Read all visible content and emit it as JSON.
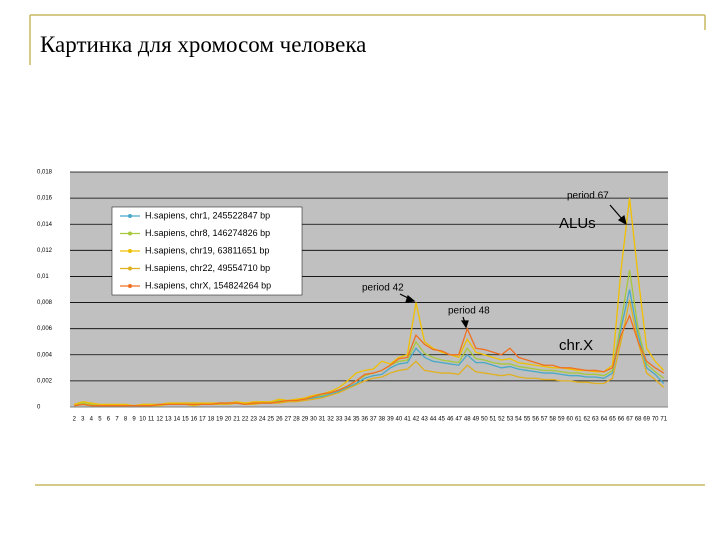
{
  "title": "Картинка для хромосом человека",
  "chart_data": {
    "type": "line",
    "categories": [
      2,
      3,
      4,
      5,
      6,
      7,
      8,
      9,
      10,
      11,
      12,
      13,
      14,
      15,
      16,
      17,
      18,
      19,
      20,
      21,
      22,
      23,
      24,
      25,
      26,
      27,
      28,
      29,
      30,
      31,
      32,
      33,
      34,
      35,
      36,
      37,
      38,
      39,
      40,
      41,
      42,
      43,
      44,
      45,
      46,
      47,
      48,
      49,
      50,
      51,
      52,
      53,
      54,
      55,
      56,
      57,
      58,
      59,
      60,
      61,
      62,
      63,
      64,
      65,
      66,
      67,
      68,
      69,
      70,
      71
    ],
    "ylim": [
      0,
      0.018
    ],
    "yticks": [
      0,
      {
        "value": 0.002,
        "label": "0,002"
      },
      {
        "value": 0.004,
        "label": "0,004"
      },
      {
        "value": 0.006,
        "label": "0,006"
      },
      {
        "value": 0.008,
        "label": "0,008"
      },
      {
        "value": 0.01,
        "label": "0,01"
      },
      {
        "value": 0.012,
        "label": "0,012"
      },
      {
        "value": 0.014,
        "label": "0,014"
      },
      {
        "value": 0.016,
        "label": "0,016"
      },
      {
        "value": 0.018,
        "label": "0,018"
      }
    ],
    "grid": true,
    "legend": "upper-left",
    "series": [
      {
        "name": "H.sapiens, chr1, 245522847 bp",
        "color": "#4aa8c8",
        "values": [
          0.0001,
          0.0002,
          0.0001,
          0.0001,
          0.0001,
          0.0001,
          0.0001,
          0.0001,
          0.0001,
          0.0001,
          0.0002,
          0.0002,
          0.0002,
          0.0002,
          0.0002,
          0.0002,
          0.0002,
          0.0002,
          0.0003,
          0.0003,
          0.0002,
          0.0003,
          0.0003,
          0.0003,
          0.0004,
          0.0004,
          0.0005,
          0.0005,
          0.0007,
          0.0008,
          0.001,
          0.0012,
          0.0015,
          0.0018,
          0.0022,
          0.0024,
          0.0025,
          0.003,
          0.0033,
          0.0034,
          0.0045,
          0.0038,
          0.0035,
          0.0034,
          0.0033,
          0.0032,
          0.004,
          0.0034,
          0.0034,
          0.0032,
          0.003,
          0.0031,
          0.0029,
          0.0028,
          0.0027,
          0.0026,
          0.0026,
          0.0025,
          0.0024,
          0.0024,
          0.0023,
          0.0023,
          0.0022,
          0.0026,
          0.006,
          0.009,
          0.0055,
          0.003,
          0.0025,
          0.0018
        ]
      },
      {
        "name": "H.sapiens, chr8, 146274826 bp",
        "color": "#a8c83c",
        "values": [
          0.0002,
          0.0003,
          0.0002,
          0.0001,
          0.0001,
          0.0002,
          0.0001,
          0.0001,
          0.0002,
          0.0002,
          0.0002,
          0.0002,
          0.0003,
          0.0002,
          0.0002,
          0.0003,
          0.0002,
          0.0003,
          0.0003,
          0.0003,
          0.0003,
          0.0003,
          0.0004,
          0.0003,
          0.0005,
          0.0004,
          0.0005,
          0.0006,
          0.0008,
          0.0009,
          0.0011,
          0.0013,
          0.0016,
          0.002,
          0.0024,
          0.0026,
          0.0028,
          0.0032,
          0.0035,
          0.0036,
          0.005,
          0.0041,
          0.0038,
          0.0036,
          0.0035,
          0.0034,
          0.0045,
          0.0037,
          0.0036,
          0.0034,
          0.0033,
          0.0033,
          0.0031,
          0.003,
          0.0029,
          0.0028,
          0.0028,
          0.0027,
          0.0026,
          0.0026,
          0.0025,
          0.0025,
          0.0024,
          0.0028,
          0.0065,
          0.0105,
          0.006,
          0.0033,
          0.0027,
          0.0022
        ]
      },
      {
        "name": "H.sapiens, chr19, 63811651 bp",
        "color": "#f0c000",
        "values": [
          0.0002,
          0.0004,
          0.0003,
          0.0002,
          0.0002,
          0.0002,
          0.0002,
          0.0001,
          0.0002,
          0.0002,
          0.0002,
          0.0003,
          0.0003,
          0.0003,
          0.0003,
          0.0003,
          0.0003,
          0.0003,
          0.0003,
          0.0004,
          0.0003,
          0.0004,
          0.0004,
          0.0004,
          0.0006,
          0.0005,
          0.0006,
          0.0007,
          0.0009,
          0.001,
          0.0012,
          0.0015,
          0.002,
          0.0026,
          0.0028,
          0.0029,
          0.0035,
          0.0033,
          0.0038,
          0.004,
          0.008,
          0.005,
          0.0045,
          0.0042,
          0.004,
          0.0038,
          0.0052,
          0.0042,
          0.004,
          0.0038,
          0.0036,
          0.0037,
          0.0034,
          0.0033,
          0.0032,
          0.0031,
          0.003,
          0.003,
          0.0029,
          0.0028,
          0.0028,
          0.0027,
          0.0027,
          0.0032,
          0.0105,
          0.016,
          0.01,
          0.0045,
          0.0035,
          0.0028
        ]
      },
      {
        "name": "H.sapiens, chr22, 49554710 bp",
        "color": "#e0b020",
        "values": [
          0.0001,
          0.0002,
          0.0001,
          0.0001,
          0.0001,
          0.0001,
          0.0001,
          0.0001,
          0.0001,
          0.0001,
          0.0001,
          0.0002,
          0.0002,
          0.0002,
          0.0001,
          0.0002,
          0.0002,
          0.0002,
          0.0002,
          0.0003,
          0.0002,
          0.0002,
          0.0003,
          0.0003,
          0.0003,
          0.0004,
          0.0004,
          0.0005,
          0.0006,
          0.0007,
          0.0009,
          0.0011,
          0.0014,
          0.0017,
          0.002,
          0.0022,
          0.0023,
          0.0026,
          0.0028,
          0.0029,
          0.0035,
          0.0028,
          0.0027,
          0.0026,
          0.0026,
          0.0025,
          0.0032,
          0.0027,
          0.0026,
          0.0025,
          0.0024,
          0.0025,
          0.0023,
          0.0022,
          0.0022,
          0.0021,
          0.0021,
          0.002,
          0.002,
          0.0019,
          0.0019,
          0.0018,
          0.0018,
          0.0022,
          0.005,
          0.0082,
          0.005,
          0.0026,
          0.0021,
          0.0015
        ]
      },
      {
        "name": "H.sapiens, chrX, 154824264 bp",
        "color": "#f07020",
        "values": [
          0.0001,
          0.0002,
          0.0001,
          0.0001,
          0.0001,
          0.0001,
          0.0001,
          0.0001,
          0.0001,
          0.0001,
          0.0002,
          0.0002,
          0.0002,
          0.0002,
          0.0002,
          0.0002,
          0.0002,
          0.0003,
          0.0003,
          0.0003,
          0.0002,
          0.0003,
          0.0003,
          0.0003,
          0.0004,
          0.0005,
          0.0005,
          0.0006,
          0.0008,
          0.001,
          0.0011,
          0.0013,
          0.0016,
          0.002,
          0.0025,
          0.0026,
          0.0028,
          0.0032,
          0.0037,
          0.0038,
          0.0055,
          0.0048,
          0.0044,
          0.0043,
          0.004,
          0.004,
          0.006,
          0.0045,
          0.0044,
          0.0042,
          0.004,
          0.0045,
          0.0038,
          0.0036,
          0.0034,
          0.0032,
          0.0032,
          0.003,
          0.003,
          0.0029,
          0.0028,
          0.0028,
          0.0027,
          0.003,
          0.0055,
          0.007,
          0.005,
          0.0035,
          0.003,
          0.0026
        ]
      }
    ],
    "annotations": [
      "period 67",
      "ALUs",
      "period 42",
      "period 48",
      "chr.X"
    ]
  }
}
